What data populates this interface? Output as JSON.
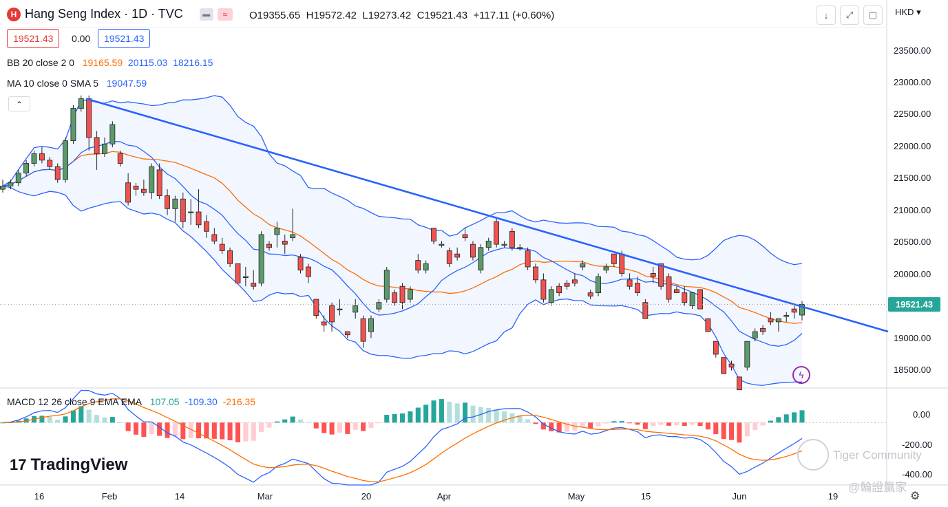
{
  "header": {
    "title": "Hang Seng Index · 1D · TVC",
    "open_label": "O",
    "open": "19355.65",
    "high_label": "H",
    "high": "19572.42",
    "low_label": "L",
    "low": "19273.42",
    "close_label": "C",
    "close": "19521.43",
    "change": "+117.11 (+0.60%)"
  },
  "price_boxes": {
    "bid": "19521.43",
    "spread": "0.00",
    "ask": "19521.43"
  },
  "indicators": {
    "bb_label": "BB 20 close 2 0",
    "bb_basis": "19165.59",
    "bb_upper": "20115.03",
    "bb_lower": "18216.15",
    "ma_label": "MA 10 close 0 SMA 5",
    "ma_value": "19047.59",
    "macd_label": "MACD 12 26 close 9 EMA EMA",
    "macd_hist": "107.05",
    "macd_line": "-109.30",
    "macd_signal": "-216.35"
  },
  "currency": "HKD",
  "price_axis": [
    "23500.00",
    "23000.00",
    "22500.00",
    "22000.00",
    "21500.00",
    "21000.00",
    "20500.00",
    "20000.00",
    "19000.00",
    "18500.00"
  ],
  "current_price_tag": "19521.43",
  "macd_axis": [
    "0.00",
    "-200.00",
    "-400.00"
  ],
  "time_axis": [
    "16",
    "Feb",
    "14",
    "Mar",
    "20",
    "Apr",
    "May",
    "15",
    "Jun",
    "19"
  ],
  "brand": "TradingView",
  "watermark": {
    "line1": "Tiger Community",
    "line2": "@輪證贏家"
  },
  "colors": {
    "up": "#26a69a",
    "up_candle": "#5b9a6b",
    "down": "#ef5350",
    "bb": "#2962ff",
    "basis": "#ff6d00",
    "trend": "#2962ff"
  },
  "icons": [
    "download-icon",
    "fullscreen-icon",
    "snapshot-icon",
    "settings-icon",
    "collapse-icon",
    "lightning-icon"
  ],
  "chart_data": {
    "type": "candlestick",
    "symbol": "Hang Seng Index",
    "interval": "1D",
    "y_range": [
      18250,
      23800
    ],
    "ohlc": [
      [
        21300,
        21450,
        21250,
        21350
      ],
      [
        21350,
        21450,
        21300,
        21400
      ],
      [
        21400,
        21600,
        21350,
        21550
      ],
      [
        21550,
        21750,
        21500,
        21700
      ],
      [
        21700,
        21900,
        21650,
        21850
      ],
      [
        21850,
        21950,
        21700,
        21750
      ],
      [
        21750,
        21800,
        21600,
        21650
      ],
      [
        21650,
        21700,
        21400,
        21450
      ],
      [
        21450,
        22100,
        21400,
        22050
      ],
      [
        22050,
        22600,
        22000,
        22550
      ],
      [
        22550,
        22750,
        22500,
        22700
      ],
      [
        22700,
        22750,
        21900,
        22100
      ],
      [
        22100,
        22200,
        21600,
        21850
      ],
      [
        21850,
        22100,
        21800,
        22000
      ],
      [
        22000,
        22350,
        21950,
        22300
      ],
      [
        21850,
        21900,
        21650,
        21700
      ],
      [
        21400,
        21550,
        21050,
        21100
      ],
      [
        21350,
        21400,
        21200,
        21300
      ],
      [
        21300,
        21450,
        21200,
        21250
      ],
      [
        21250,
        21700,
        21150,
        21650
      ],
      [
        21600,
        21700,
        21150,
        21200
      ],
      [
        21200,
        21300,
        20900,
        21000
      ],
      [
        21000,
        21200,
        20800,
        21150
      ],
      [
        21150,
        21250,
        20700,
        20800
      ],
      [
        20950,
        21150,
        20750,
        20950
      ],
      [
        20950,
        21300,
        20700,
        20750
      ],
      [
        20800,
        20900,
        20550,
        20650
      ],
      [
        20600,
        20700,
        20450,
        20500
      ],
      [
        20450,
        20550,
        20300,
        20350
      ],
      [
        20350,
        20400,
        20100,
        20150
      ],
      [
        20150,
        20150,
        19850,
        19850
      ],
      [
        19950,
        20100,
        19800,
        19950
      ],
      [
        19850,
        20050,
        19750,
        19800
      ],
      [
        19850,
        20650,
        19800,
        20600
      ],
      [
        20450,
        20500,
        20350,
        20400
      ],
      [
        20600,
        20800,
        20400,
        20700
      ],
      [
        20500,
        20600,
        20300,
        20450
      ],
      [
        20550,
        21000,
        20500,
        20600
      ],
      [
        20250,
        20300,
        20000,
        20050
      ],
      [
        20100,
        20150,
        19850,
        19950
      ],
      [
        19600,
        19600,
        19300,
        19350
      ],
      [
        19250,
        19350,
        19100,
        19200
      ],
      [
        19500,
        19550,
        19100,
        19250
      ],
      [
        19450,
        19600,
        19350,
        19450
      ],
      [
        19100,
        19100,
        19000,
        19050
      ],
      [
        19400,
        19600,
        19300,
        19500
      ],
      [
        19300,
        19350,
        18850,
        18950
      ],
      [
        19100,
        19350,
        19000,
        19300
      ],
      [
        19450,
        19600,
        19400,
        19550
      ],
      [
        19600,
        20100,
        19550,
        20050
      ],
      [
        19700,
        19750,
        19500,
        19550
      ],
      [
        19800,
        19850,
        19450,
        19550
      ],
      [
        19600,
        19800,
        19550,
        19750
      ],
      [
        20200,
        20300,
        20000,
        20050
      ],
      [
        20050,
        20200,
        20000,
        20150
      ],
      [
        20700,
        20700,
        20450,
        20500
      ],
      [
        20450,
        20500,
        20400,
        20450
      ],
      [
        20350,
        20400,
        20100,
        20150
      ],
      [
        20300,
        20400,
        20200,
        20250
      ],
      [
        20600,
        20700,
        20500,
        20550
      ],
      [
        20450,
        20500,
        20200,
        20250
      ],
      [
        20050,
        20450,
        20000,
        20400
      ],
      [
        20400,
        20550,
        20350,
        20500
      ],
      [
        20800,
        20850,
        20400,
        20450
      ],
      [
        20450,
        20500,
        20400,
        20450
      ],
      [
        20650,
        20700,
        20350,
        20400
      ],
      [
        20400,
        20450,
        20350,
        20400
      ],
      [
        20350,
        20400,
        20050,
        20100
      ],
      [
        20100,
        20150,
        19850,
        19900
      ],
      [
        19900,
        20000,
        19550,
        19600
      ],
      [
        19550,
        19800,
        19500,
        19750
      ],
      [
        19800,
        19850,
        19650,
        19700
      ],
      [
        19850,
        19900,
        19750,
        19800
      ],
      [
        19900,
        20000,
        19800,
        19850
      ],
      [
        20100,
        20200,
        20050,
        20150
      ],
      [
        19700,
        19750,
        19600,
        19650
      ],
      [
        19700,
        20000,
        19650,
        19950
      ],
      [
        20050,
        20150,
        20000,
        20100
      ],
      [
        20300,
        20300,
        20100,
        20150
      ],
      [
        20300,
        20350,
        19950,
        20000
      ],
      [
        19900,
        20000,
        19750,
        19800
      ],
      [
        19850,
        19950,
        19650,
        19700
      ],
      [
        19550,
        19600,
        19300,
        19300
      ],
      [
        20000,
        20100,
        19850,
        19950
      ],
      [
        20150,
        20150,
        19750,
        19800
      ],
      [
        19950,
        20000,
        19550,
        19600
      ],
      [
        19750,
        19800,
        19700,
        19700
      ],
      [
        19700,
        19800,
        19500,
        19550
      ],
      [
        19500,
        19700,
        19450,
        19700
      ],
      [
        19750,
        19750,
        19450,
        19450
      ],
      [
        19300,
        19300,
        19100,
        19100
      ],
      [
        18950,
        18950,
        18700,
        18750
      ],
      [
        18700,
        18700,
        18450,
        18450
      ],
      [
        18600,
        18650,
        18500,
        18550
      ],
      [
        18400,
        18400,
        18200,
        18200
      ],
      [
        18550,
        18950,
        18500,
        18950
      ],
      [
        19000,
        19150,
        18950,
        19100
      ],
      [
        19150,
        19200,
        19050,
        19100
      ],
      [
        19300,
        19400,
        19200,
        19250
      ],
      [
        19250,
        19300,
        19100,
        19300
      ],
      [
        19350,
        19400,
        19250,
        19350
      ],
      [
        19450,
        19500,
        19300,
        19400
      ],
      [
        19355.65,
        19572.42,
        19273.42,
        19521.43
      ]
    ],
    "trendline": {
      "start": 22700,
      "end": 19100
    },
    "current_price": 19521.43
  }
}
